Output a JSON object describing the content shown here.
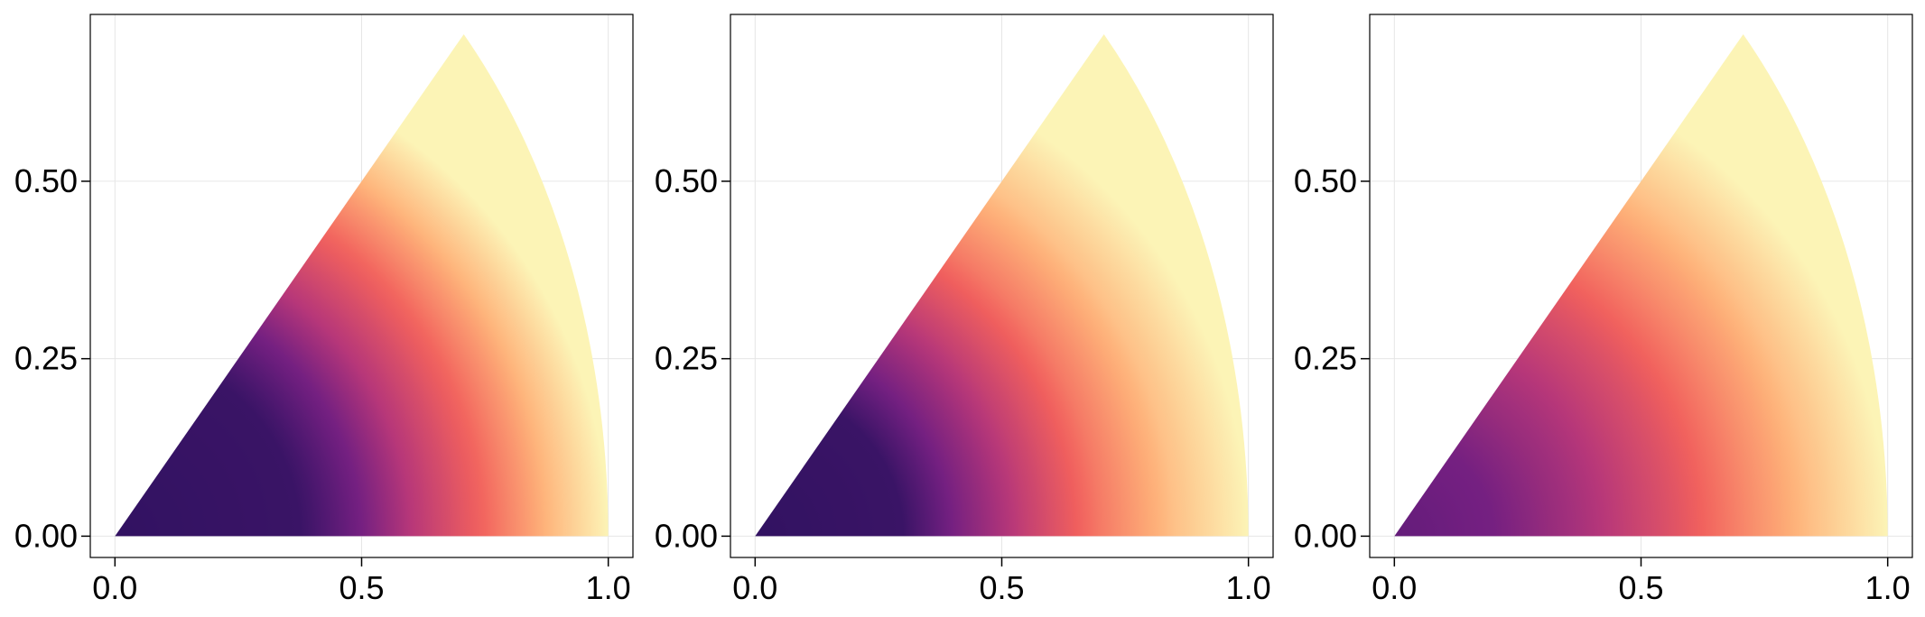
{
  "chart_data": [
    {
      "type": "heatmap",
      "title": "",
      "xlabel": "",
      "ylabel": "",
      "xlim": [
        -0.05,
        1.05
      ],
      "ylim": [
        -0.03,
        0.735
      ],
      "xticks": [
        0.0,
        0.5,
        1.0
      ],
      "xtick_labels": [
        "0.0",
        "0.5",
        "1.0"
      ],
      "yticks": [
        0.0,
        0.25,
        0.5
      ],
      "ytick_labels": [
        "0.00",
        "0.25",
        "0.50"
      ],
      "grid": true,
      "colormap": "magma",
      "region": {
        "shape": "circular-sector",
        "radius": 1.0,
        "angle_start_deg": 0,
        "angle_end_deg": 45
      },
      "color_profile": {
        "radius": [
          0.0,
          0.38,
          0.5,
          0.6,
          0.75,
          0.88,
          1.0
        ],
        "value": [
          0.18,
          0.2,
          0.34,
          0.5,
          0.68,
          0.85,
          0.98
        ]
      }
    },
    {
      "type": "heatmap",
      "title": "",
      "xlabel": "",
      "ylabel": "",
      "xlim": [
        -0.05,
        1.05
      ],
      "ylim": [
        -0.03,
        0.735
      ],
      "xticks": [
        0.0,
        0.5,
        1.0
      ],
      "xtick_labels": [
        "0.0",
        "0.5",
        "1.0"
      ],
      "yticks": [
        0.0,
        0.25,
        0.5
      ],
      "ytick_labels": [
        "0.00",
        "0.25",
        "0.50"
      ],
      "grid": true,
      "colormap": "magma",
      "region": {
        "shape": "circular-sector",
        "radius": 1.0,
        "angle_start_deg": 0,
        "angle_end_deg": 45
      },
      "color_profile": {
        "radius": [
          0.0,
          0.3,
          0.4,
          0.55,
          0.7,
          0.85,
          1.0
        ],
        "value": [
          0.18,
          0.2,
          0.34,
          0.54,
          0.72,
          0.87,
          0.98
        ]
      }
    },
    {
      "type": "heatmap",
      "title": "",
      "xlabel": "",
      "ylabel": "",
      "xlim": [
        -0.05,
        1.05
      ],
      "ylim": [
        -0.03,
        0.735
      ],
      "xticks": [
        0.0,
        0.5,
        1.0
      ],
      "xtick_labels": [
        "0.0",
        "0.5",
        "1.0"
      ],
      "yticks": [
        0.0,
        0.25,
        0.5
      ],
      "ytick_labels": [
        "0.00",
        "0.25",
        "0.50"
      ],
      "grid": true,
      "colormap": "magma",
      "region": {
        "shape": "circular-sector",
        "radius": 1.0,
        "angle_start_deg": 0,
        "angle_end_deg": 45
      },
      "color_profile": {
        "radius": [
          0.0,
          0.2,
          0.4,
          0.55,
          0.7,
          0.85,
          1.0
        ],
        "value": [
          0.3,
          0.34,
          0.48,
          0.6,
          0.74,
          0.87,
          0.98
        ]
      }
    }
  ],
  "colors": {
    "magma": [
      "#000004",
      "#2c115f",
      "#721f81",
      "#b73779",
      "#f1605d",
      "#feb078",
      "#fcfdbf"
    ],
    "grid": "#e6e6e6",
    "frame": "#000000",
    "background": "#ffffff"
  }
}
